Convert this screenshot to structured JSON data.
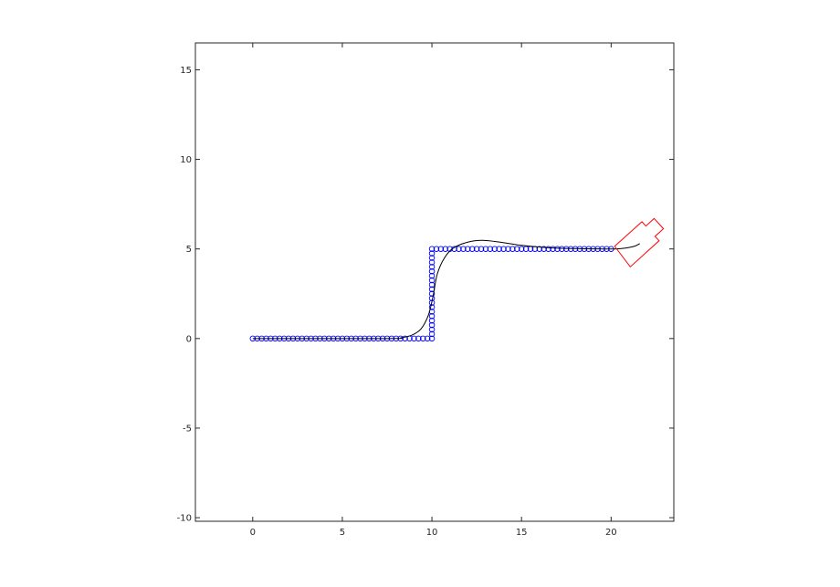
{
  "chart_data": {
    "type": "scatter",
    "title": "",
    "xlabel": "",
    "ylabel": "",
    "xlim": [
      -3.2,
      23.5
    ],
    "ylim": [
      -10.2,
      16.5
    ],
    "grid": false,
    "legend": "none",
    "xticks": [
      0,
      5,
      10,
      15,
      20
    ],
    "yticks": [
      -10,
      -5,
      0,
      5,
      10,
      15
    ],
    "xtick_labels": [
      "0",
      "5",
      "10",
      "15",
      "20"
    ],
    "ytick_labels": [
      "-10",
      "-5",
      "0",
      "5",
      "10",
      "15"
    ],
    "series": [
      {
        "kind": "markers",
        "marker": "circle",
        "color": "#0000ff",
        "path": [
          [
            0,
            0
          ],
          [
            10,
            0
          ],
          [
            10,
            5
          ],
          [
            20,
            5
          ]
        ],
        "step": 0.25
      },
      {
        "kind": "line",
        "color": "#000000",
        "points": [
          [
            0,
            0
          ],
          [
            7.5,
            0
          ],
          [
            8.3,
            0.05
          ],
          [
            8.9,
            0.2
          ],
          [
            9.4,
            0.55
          ],
          [
            9.8,
            1.3
          ],
          [
            10.05,
            2.3
          ],
          [
            10.3,
            3.6
          ],
          [
            10.7,
            4.5
          ],
          [
            11.2,
            5.05
          ],
          [
            12.0,
            5.38
          ],
          [
            12.8,
            5.48
          ],
          [
            13.8,
            5.38
          ],
          [
            15.0,
            5.2
          ],
          [
            16.5,
            5.07
          ],
          [
            18.0,
            5.02
          ],
          [
            19.5,
            5.0
          ],
          [
            20.2,
            5.0
          ],
          [
            20.8,
            5.05
          ],
          [
            21.3,
            5.15
          ],
          [
            21.6,
            5.3
          ]
        ]
      },
      {
        "kind": "polygon",
        "color": "#ff0000",
        "points": [
          [
            20.2,
            5.15
          ],
          [
            21.72,
            6.52
          ],
          [
            21.94,
            6.28
          ],
          [
            22.4,
            6.7
          ],
          [
            22.92,
            6.13
          ],
          [
            22.45,
            5.7
          ],
          [
            22.68,
            5.46
          ],
          [
            21.07,
            4.0
          ]
        ]
      }
    ]
  }
}
